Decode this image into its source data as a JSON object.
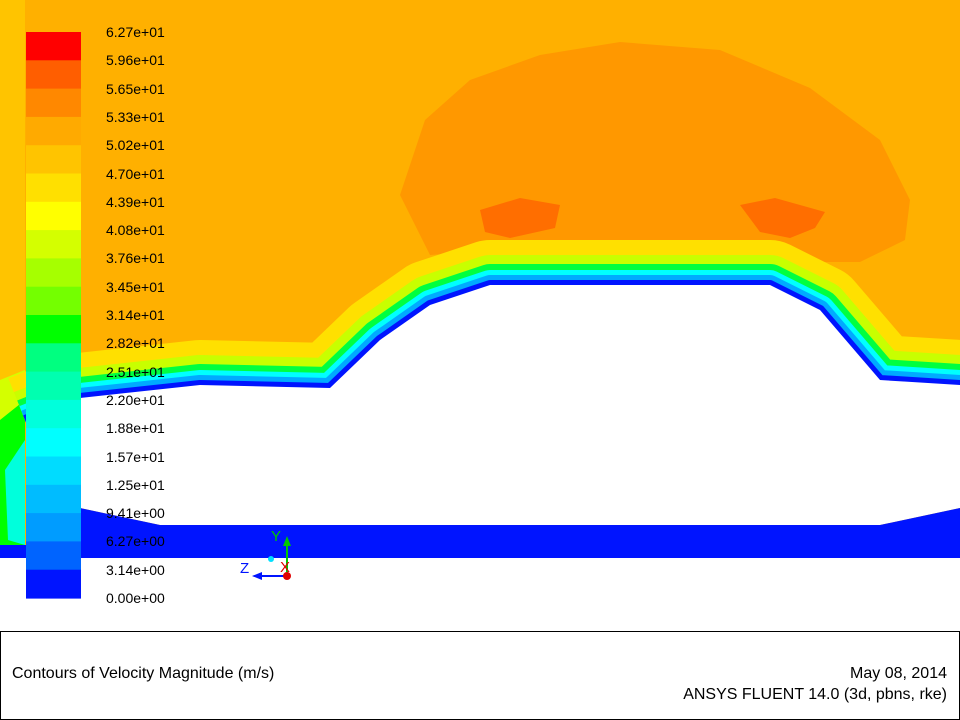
{
  "chart_data": {
    "type": "heatmap",
    "title": "Contours of Velocity Magnitude (m/s)",
    "colorbar": {
      "unit": "m/s",
      "min": 0.0,
      "max": 62.7,
      "tick_labels": [
        "6.27e+01",
        "5.96e+01",
        "5.65e+01",
        "5.33e+01",
        "5.02e+01",
        "4.70e+01",
        "4.39e+01",
        "4.08e+01",
        "3.76e+01",
        "3.45e+01",
        "3.14e+01",
        "2.82e+01",
        "2.51e+01",
        "2.20e+01",
        "1.88e+01",
        "1.57e+01",
        "1.25e+01",
        "9.41e+00",
        "6.27e+00",
        "3.14e+00",
        "0.00e+00"
      ],
      "colors": [
        "#ff0000",
        "#ff5e00",
        "#ff8800",
        "#ffaa00",
        "#ffc400",
        "#ffe000",
        "#ffff00",
        "#d4ff00",
        "#a6ff00",
        "#74ff00",
        "#00ff00",
        "#00ff80",
        "#00ffb0",
        "#00ffdc",
        "#00ffff",
        "#00dcff",
        "#00bcff",
        "#009cff",
        "#0064ff",
        "#0014ff"
      ]
    },
    "axes_triad": {
      "x": "X",
      "y": "Y",
      "z": "Z"
    }
  },
  "footer": {
    "title": "Contours of Velocity Magnitude (m/s)",
    "date": "May 08, 2014",
    "software": "ANSYS FLUENT 14.0 (3d, pbns, rke)"
  }
}
